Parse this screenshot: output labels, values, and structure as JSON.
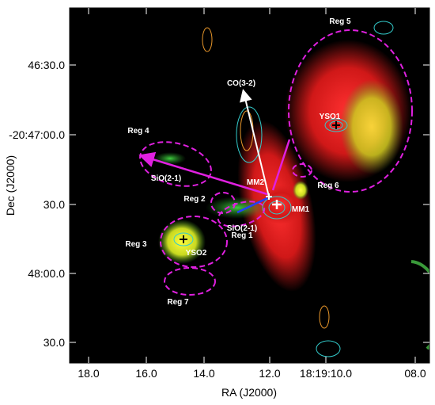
{
  "axes": {
    "x_label": "RA (J2000)",
    "y_label": "Dec (J2000)",
    "x_ticks": [
      "18.0",
      "16.0",
      "14.0",
      "12.0",
      "18:19:10.0",
      "08.0"
    ],
    "y_ticks": [
      "46:30.0",
      "-20:47:00.0",
      "30.0",
      "48:00.0",
      "30.0"
    ]
  },
  "annotations": [
    "Reg 5",
    "CO(3-2)",
    "YSO1",
    "Reg 4",
    "SiO(2-1)",
    "MM2",
    "Reg 6",
    "Reg 2",
    "MM1",
    "SiO(2-1)",
    "Reg 1",
    "Reg 3",
    "YSO2",
    "Reg 7"
  ]
}
